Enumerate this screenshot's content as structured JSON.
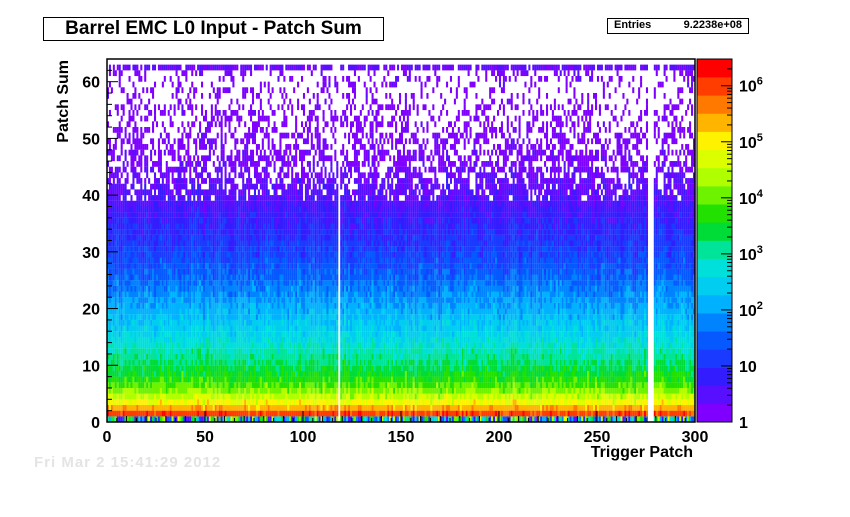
{
  "chart_data": {
    "type": "heatmap",
    "title": "Barrel EMC L0 Input - Patch Sum",
    "stats": {
      "label": "Entries",
      "value": "9.2238e+08"
    },
    "xlabel": "Trigger Patch",
    "ylabel": "Patch Sum",
    "xlim": [
      0,
      300
    ],
    "ylim": [
      0,
      64
    ],
    "x_ticks": [
      "0",
      "50",
      "100",
      "150",
      "200",
      "250",
      "300"
    ],
    "y_ticks": [
      "0",
      "10",
      "20",
      "30",
      "40",
      "50",
      "60"
    ],
    "z_log_scale": true,
    "zlim": [
      1,
      3000000
    ],
    "z_ticks": [
      {
        "value": 1,
        "base": "1",
        "exp": ""
      },
      {
        "value": 10,
        "base": "10",
        "exp": ""
      },
      {
        "value": 100,
        "base": "10",
        "exp": "2"
      },
      {
        "value": 1000,
        "base": "10",
        "exp": "3"
      },
      {
        "value": 10000,
        "base": "10",
        "exp": "4"
      },
      {
        "value": 100000,
        "base": "10",
        "exp": "5"
      },
      {
        "value": 1000000,
        "base": "10",
        "exp": "6"
      }
    ],
    "grid": false,
    "empty_columns": [
      118,
      276,
      277,
      278
    ],
    "patch_sum_profile_log10": [
      {
        "patch_sum": 0,
        "log10_counts": 4.3
      },
      {
        "patch_sum": 1,
        "log10_counts": 6.3
      },
      {
        "patch_sum": 2,
        "log10_counts": 5.7
      },
      {
        "patch_sum": 3,
        "log10_counts": 5.1
      },
      {
        "patch_sum": 4,
        "log10_counts": 4.7
      },
      {
        "patch_sum": 6,
        "log10_counts": 4.0
      },
      {
        "patch_sum": 8,
        "log10_counts": 3.6
      },
      {
        "patch_sum": 10,
        "log10_counts": 3.3
      },
      {
        "patch_sum": 15,
        "log10_counts": 2.6
      },
      {
        "patch_sum": 20,
        "log10_counts": 2.1
      },
      {
        "patch_sum": 25,
        "log10_counts": 1.6
      },
      {
        "patch_sum": 30,
        "log10_counts": 1.2
      },
      {
        "patch_sum": 35,
        "log10_counts": 0.85
      },
      {
        "patch_sum": 40,
        "log10_counts": 0.5
      },
      {
        "patch_sum": 45,
        "log10_counts": 0.25
      },
      {
        "patch_sum": 50,
        "log10_counts": 0.1
      },
      {
        "patch_sum": 55,
        "log10_counts": 0.0
      },
      {
        "patch_sum": 63,
        "log10_counts": 0.3
      }
    ]
  },
  "footer_faded_text": "Fri Mar 2 15:41:29 2012",
  "colors": {
    "frame": "#000000",
    "background": "#ffffff",
    "palette_stops": [
      "#7f00ff",
      "#2f1fff",
      "#0060ff",
      "#00c0ff",
      "#00e8d0",
      "#00d800",
      "#a0ff00",
      "#ffff00",
      "#ff8000",
      "#ff0000"
    ]
  }
}
